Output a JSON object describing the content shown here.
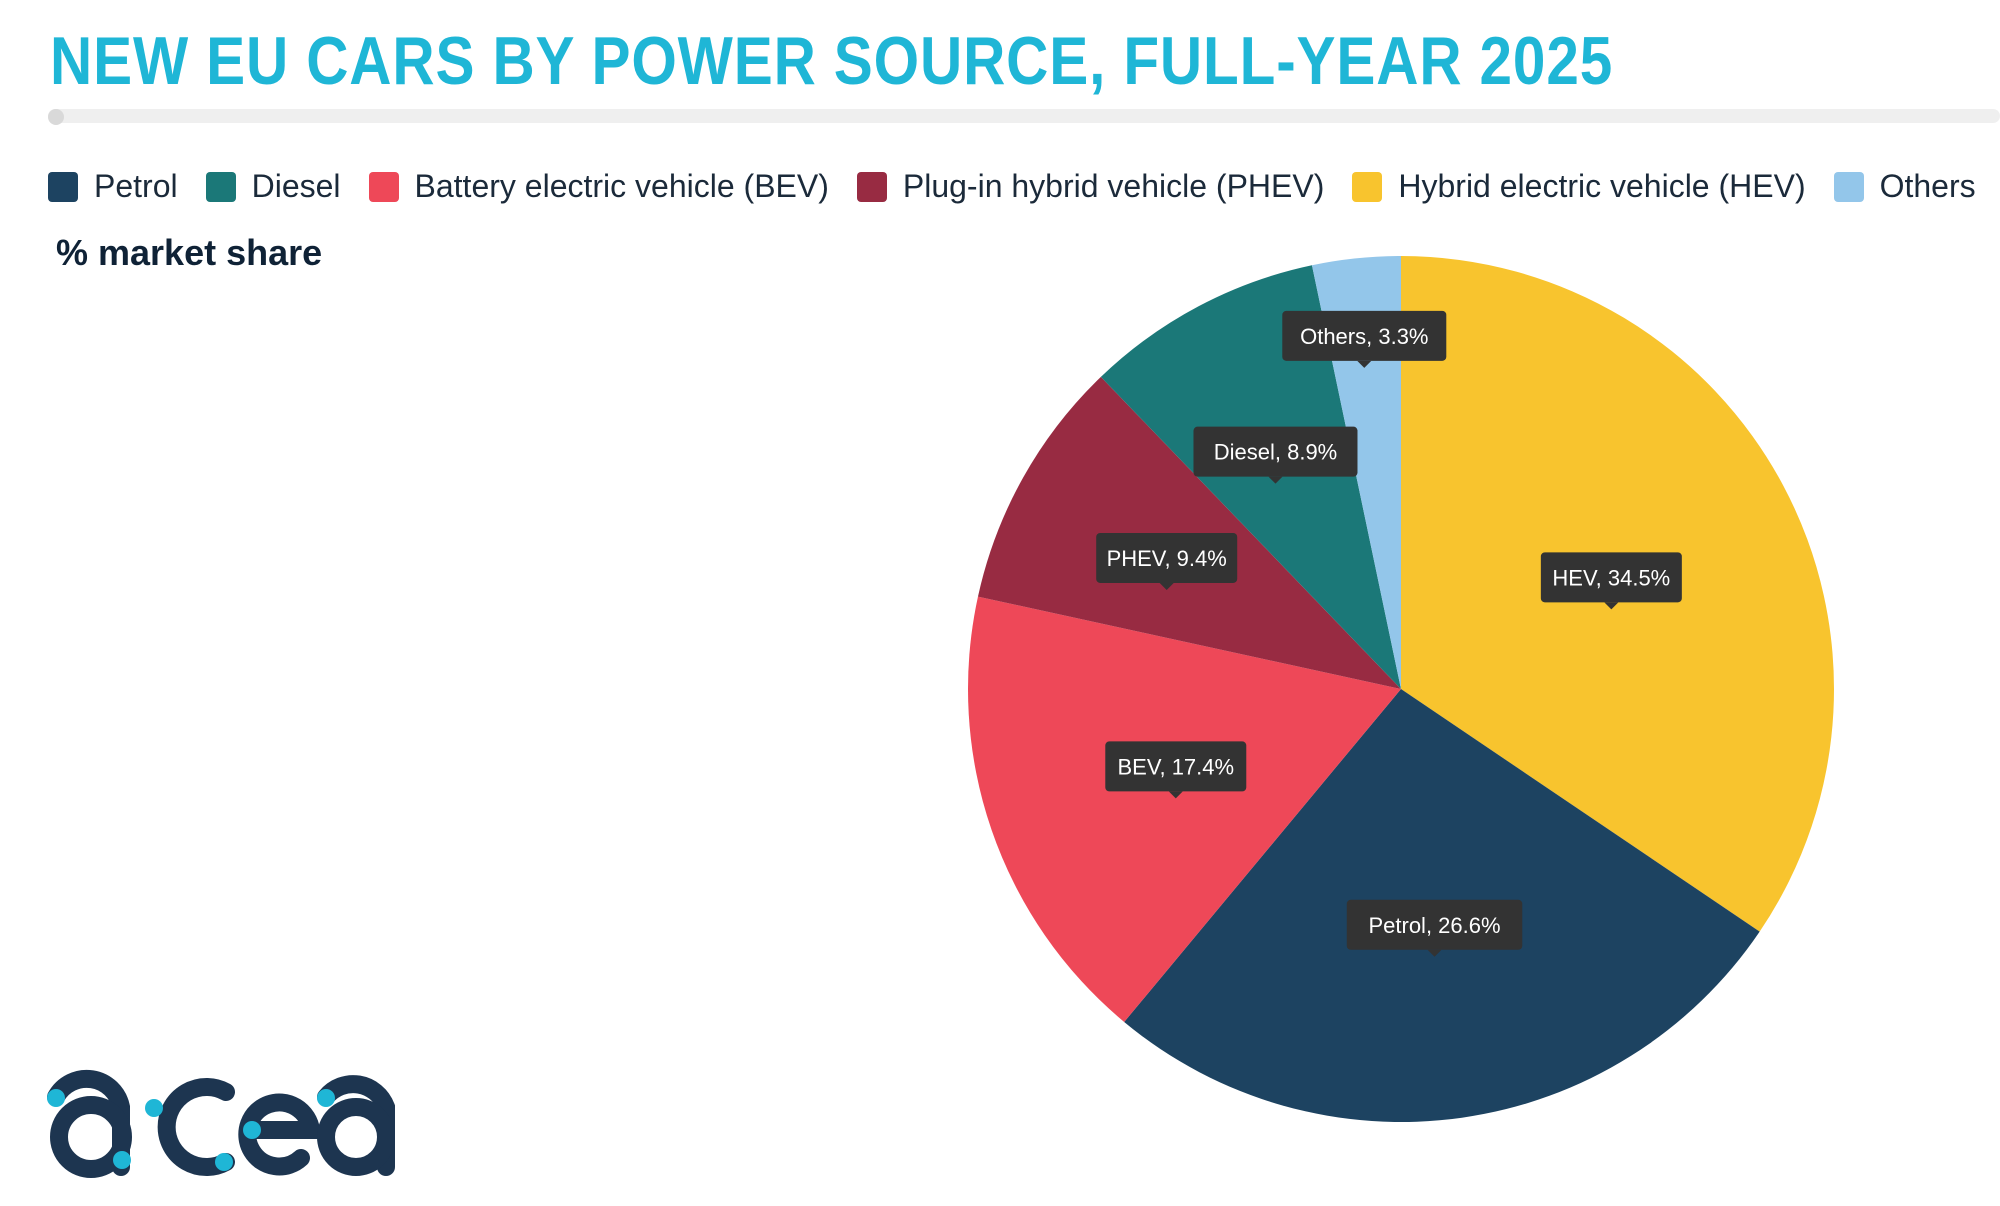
{
  "title": "NEW EU CARS BY POWER SOURCE, FULL-YEAR 2025",
  "subtitle": "% market share",
  "logo_text": "acea",
  "legend": [
    {
      "label": "Petrol",
      "color": "#1d4361"
    },
    {
      "label": "Diesel",
      "color": "#1b7878"
    },
    {
      "label": "Battery electric vehicle (BEV)",
      "color": "#ee4858"
    },
    {
      "label": "Plug-in hybrid vehicle (PHEV)",
      "color": "#982b42"
    },
    {
      "label": "Hybrid electric vehicle (HEV)",
      "color": "#f8c42e"
    },
    {
      "label": "Others",
      "color": "#93c6ea"
    }
  ],
  "chart_data": {
    "type": "pie",
    "title": "NEW EU CARS BY POWER SOURCE, FULL-YEAR 2025",
    "subtitle": "% market share",
    "legend_position": "top",
    "slices": [
      {
        "name": "HEV",
        "value": 34.5,
        "label": "HEV, 34.5%",
        "color": "#f8c42e"
      },
      {
        "name": "Petrol",
        "value": 26.6,
        "label": "Petrol, 26.6%",
        "color": "#1d4361"
      },
      {
        "name": "BEV",
        "value": 17.4,
        "label": "BEV, 17.4%",
        "color": "#ee4858"
      },
      {
        "name": "PHEV",
        "value": 9.4,
        "label": "PHEV, 9.4%",
        "color": "#982b42"
      },
      {
        "name": "Diesel",
        "value": 8.9,
        "label": "Diesel, 8.9%",
        "color": "#1b7878"
      },
      {
        "name": "Others",
        "value": 3.3,
        "label": "Others, 3.3%",
        "color": "#93c6ea"
      }
    ]
  }
}
